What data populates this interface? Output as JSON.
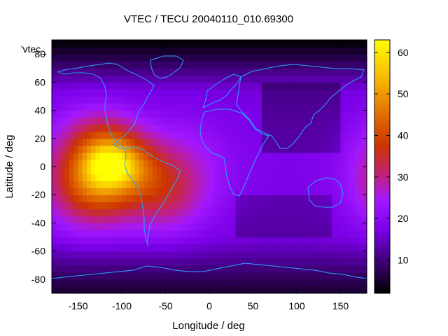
{
  "chart_data": {
    "type": "heatmap",
    "title": "VTEC / TECU 20040110_010.69300",
    "xlabel": "Longitude / deg",
    "ylabel": "Latitude / deg",
    "legend_key": "'vtec_",
    "xlim": [
      -180,
      180
    ],
    "ylim": [
      -90,
      90
    ],
    "x_ticks": [
      -150,
      -100,
      -50,
      0,
      50,
      100,
      150
    ],
    "y_ticks": [
      -80,
      -60,
      -40,
      -20,
      0,
      20,
      40,
      60,
      80
    ],
    "colorbar": {
      "min": 2,
      "max": 63,
      "ticks": [
        10,
        20,
        30,
        40,
        50,
        60
      ]
    },
    "colormap": [
      "#000000",
      "#3a0070",
      "#7a00e8",
      "#a218ff",
      "#c02080",
      "#cc3300",
      "#e06a00",
      "#f5b000",
      "#ffff00"
    ],
    "coastline_color": "#2aa5ff",
    "grid": false,
    "field_description": "VTEC maximum of about 60 TECU near 110 W on the equator, high values 30-50 TECU over the eastern Pacific and South America, low values (under 10 TECU) over the Arctic, Asia and the Southern Ocean"
  }
}
